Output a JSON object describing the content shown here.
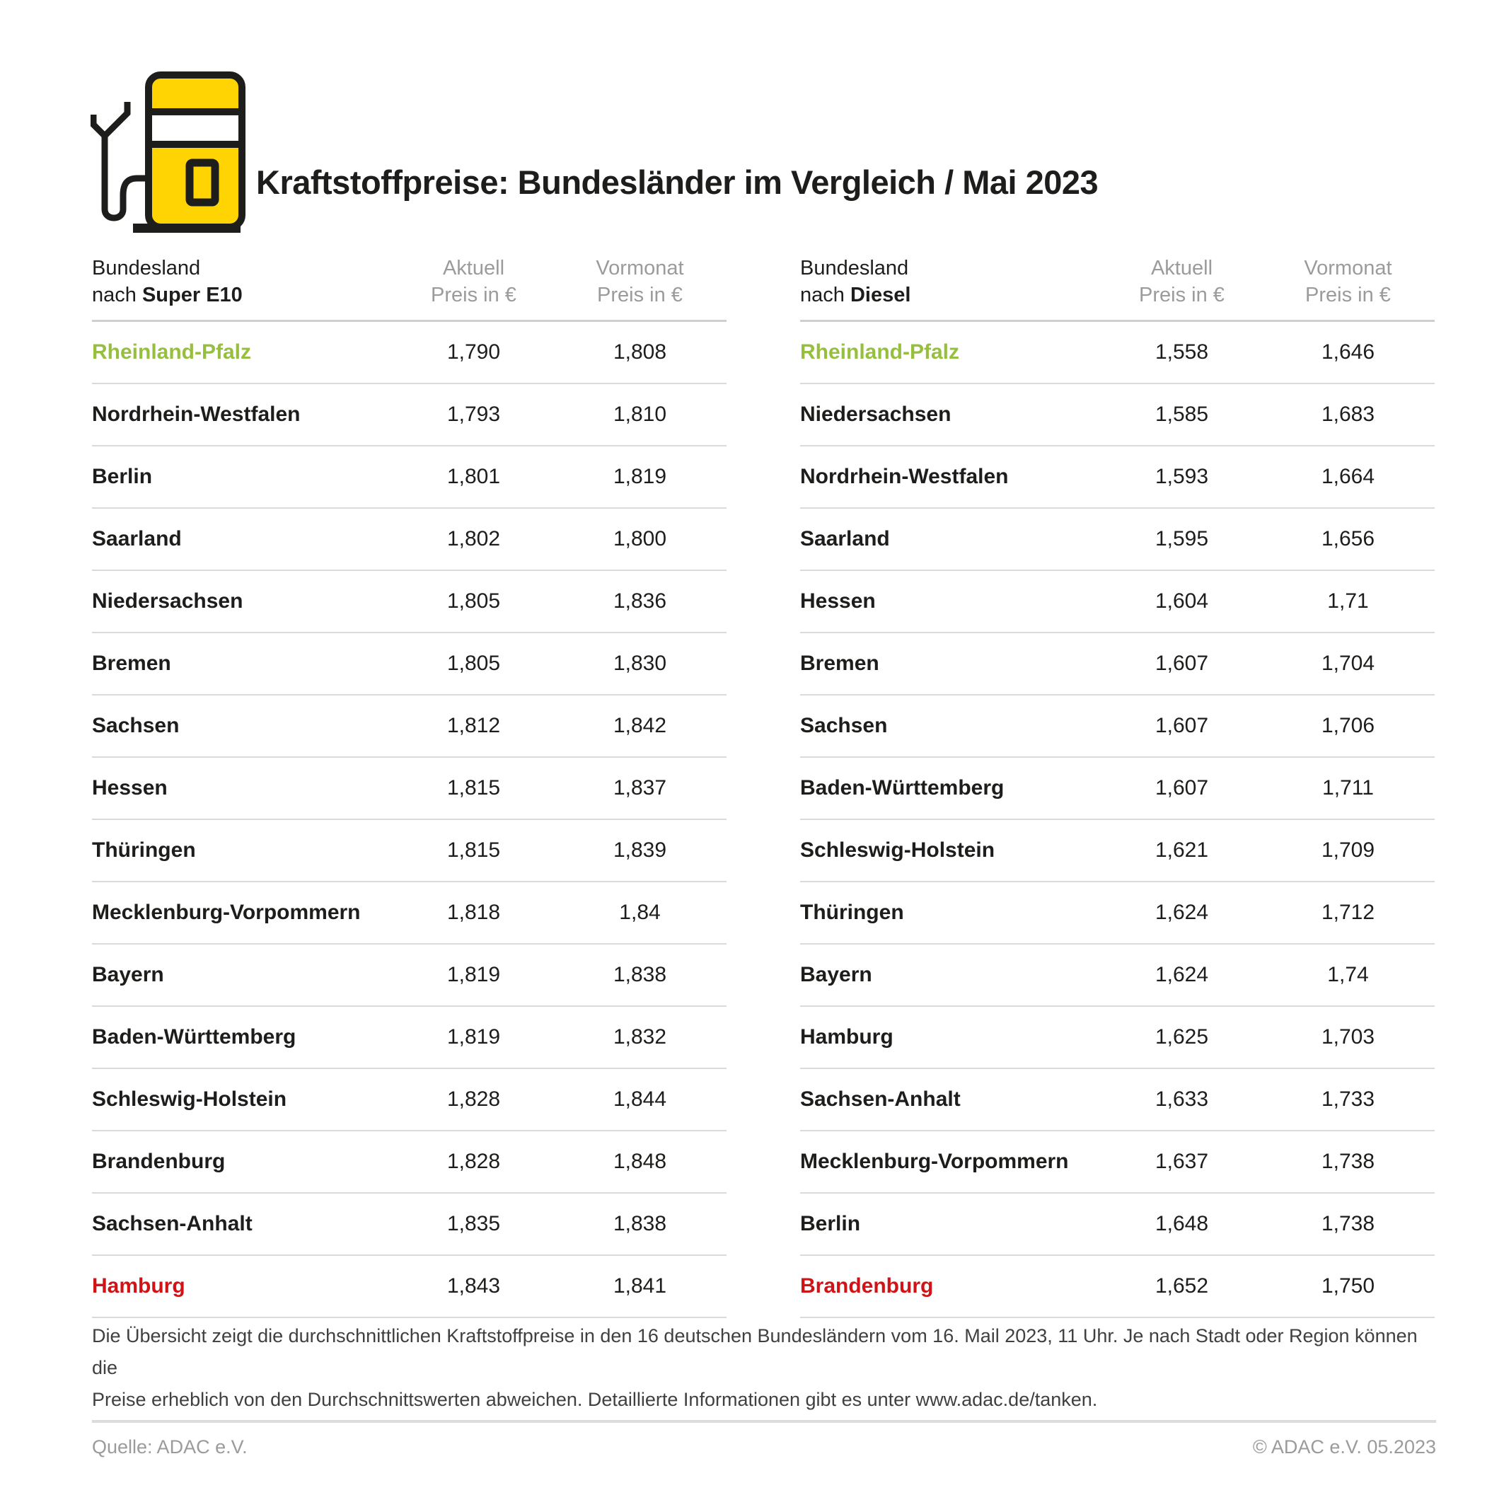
{
  "title": "Kraftstoffpreise: Bundesländer im Vergleich / Mai 2023",
  "colors": {
    "accent_green": "#97bf3f",
    "accent_red": "#d01317",
    "brand_yellow": "#ffd402",
    "text_black": "#1d1d1b",
    "muted_gray": "#9b9b9a",
    "line_gray": "#dadada"
  },
  "chart_data": [
    {
      "type": "table",
      "title": "Bundesland nach Super E10",
      "header": {
        "col1_line1": "Bundesland",
        "col1_prefix": "nach ",
        "col1_fuel": "Super E10",
        "col2_line1": "Aktuell",
        "col2_line2": "Preis in €",
        "col3_line1": "Vormonat",
        "col3_line2": "Preis in €"
      },
      "rows": [
        {
          "land": "Rheinland-Pfalz",
          "aktuell": "1,790",
          "vormonat": "1,808",
          "highlight": "green"
        },
        {
          "land": "Nordrhein-Westfalen",
          "aktuell": "1,793",
          "vormonat": "1,810",
          "highlight": null
        },
        {
          "land": "Berlin",
          "aktuell": "1,801",
          "vormonat": "1,819",
          "highlight": null
        },
        {
          "land": "Saarland",
          "aktuell": "1,802",
          "vormonat": "1,800",
          "highlight": null
        },
        {
          "land": "Niedersachsen",
          "aktuell": "1,805",
          "vormonat": "1,836",
          "highlight": null
        },
        {
          "land": "Bremen",
          "aktuell": "1,805",
          "vormonat": "1,830",
          "highlight": null
        },
        {
          "land": "Sachsen",
          "aktuell": "1,812",
          "vormonat": "1,842",
          "highlight": null
        },
        {
          "land": "Hessen",
          "aktuell": "1,815",
          "vormonat": "1,837",
          "highlight": null
        },
        {
          "land": "Thüringen",
          "aktuell": "1,815",
          "vormonat": "1,839",
          "highlight": null
        },
        {
          "land": "Mecklenburg-Vorpommern",
          "aktuell": "1,818",
          "vormonat": "1,84",
          "highlight": null
        },
        {
          "land": "Bayern",
          "aktuell": "1,819",
          "vormonat": "1,838",
          "highlight": null
        },
        {
          "land": "Baden-Württemberg",
          "aktuell": "1,819",
          "vormonat": "1,832",
          "highlight": null
        },
        {
          "land": "Schleswig-Holstein",
          "aktuell": "1,828",
          "vormonat": "1,844",
          "highlight": null
        },
        {
          "land": "Brandenburg",
          "aktuell": "1,828",
          "vormonat": "1,848",
          "highlight": null
        },
        {
          "land": "Sachsen-Anhalt",
          "aktuell": "1,835",
          "vormonat": "1,838",
          "highlight": null
        },
        {
          "land": "Hamburg",
          "aktuell": "1,843",
          "vormonat": "1,841",
          "highlight": "red"
        }
      ]
    },
    {
      "type": "table",
      "title": "Bundesland nach Diesel",
      "header": {
        "col1_line1": "Bundesland",
        "col1_prefix": "nach ",
        "col1_fuel": "Diesel",
        "col2_line1": "Aktuell",
        "col2_line2": "Preis in €",
        "col3_line1": "Vormonat",
        "col3_line2": "Preis in €"
      },
      "rows": [
        {
          "land": "Rheinland-Pfalz",
          "aktuell": "1,558",
          "vormonat": "1,646",
          "highlight": "green"
        },
        {
          "land": "Niedersachsen",
          "aktuell": "1,585",
          "vormonat": "1,683",
          "highlight": null
        },
        {
          "land": "Nordrhein-Westfalen",
          "aktuell": "1,593",
          "vormonat": "1,664",
          "highlight": null
        },
        {
          "land": "Saarland",
          "aktuell": "1,595",
          "vormonat": "1,656",
          "highlight": null
        },
        {
          "land": "Hessen",
          "aktuell": "1,604",
          "vormonat": "1,71",
          "highlight": null
        },
        {
          "land": "Bremen",
          "aktuell": "1,607",
          "vormonat": "1,704",
          "highlight": null
        },
        {
          "land": "Sachsen",
          "aktuell": "1,607",
          "vormonat": "1,706",
          "highlight": null
        },
        {
          "land": "Baden-Württemberg",
          "aktuell": "1,607",
          "vormonat": "1,711",
          "highlight": null
        },
        {
          "land": "Schleswig-Holstein",
          "aktuell": "1,621",
          "vormonat": "1,709",
          "highlight": null
        },
        {
          "land": "Thüringen",
          "aktuell": "1,624",
          "vormonat": "1,712",
          "highlight": null
        },
        {
          "land": "Bayern",
          "aktuell": "1,624",
          "vormonat": "1,74",
          "highlight": null
        },
        {
          "land": "Hamburg",
          "aktuell": "1,625",
          "vormonat": "1,703",
          "highlight": null
        },
        {
          "land": "Sachsen-Anhalt",
          "aktuell": "1,633",
          "vormonat": "1,733",
          "highlight": null
        },
        {
          "land": "Mecklenburg-Vorpommern",
          "aktuell": "1,637",
          "vormonat": "1,738",
          "highlight": null
        },
        {
          "land": "Berlin",
          "aktuell": "1,648",
          "vormonat": "1,738",
          "highlight": null
        },
        {
          "land": "Brandenburg",
          "aktuell": "1,652",
          "vormonat": "1,750",
          "highlight": "red"
        }
      ]
    }
  ],
  "footnote": {
    "line1": "Die Übersicht zeigt die durchschnittlichen Kraftstoffpreise in den 16 deutschen Bundesländern vom 16. Mail 2023, 11 Uhr. Je nach Stadt oder Region können die",
    "line2": "Preise erheblich von den Durchschnittswerten abweichen. Detaillierte Informationen gibt es unter www.adac.de/tanken."
  },
  "source": "Quelle: ADAC e.V.",
  "copyright": "© ADAC e.V. 05.2023"
}
